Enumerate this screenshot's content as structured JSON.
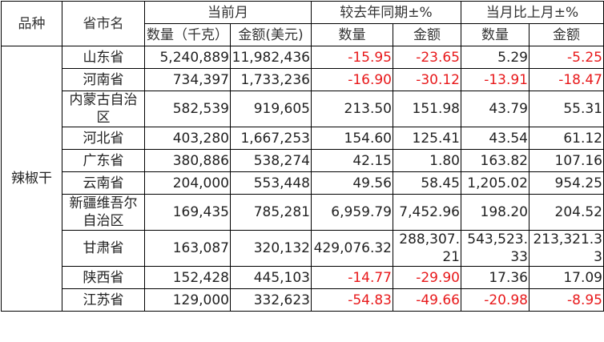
{
  "header": {
    "variety": "品种",
    "province": "省市名",
    "groups": [
      "当前月",
      "较去年同期±%",
      "当月比上月±%"
    ],
    "subheaders": [
      "数量（千克）",
      "金额(美元)",
      "数量",
      "金额",
      "数量",
      "金额"
    ]
  },
  "variety": "辣椒干",
  "rows": [
    {
      "province": "山东省",
      "values": [
        "5,240,889",
        "11,982,436",
        "-15.95",
        "-23.65",
        "5.29",
        "-5.25"
      ]
    },
    {
      "province": "河南省",
      "values": [
        "734,397",
        "1,733,236",
        "-16.90",
        "-30.12",
        "-13.91",
        "-18.47"
      ]
    },
    {
      "province": "内蒙古自治区",
      "values": [
        "582,539",
        "919,605",
        "213.50",
        "151.98",
        "43.79",
        "55.31"
      ]
    },
    {
      "province": "河北省",
      "values": [
        "403,280",
        "1,667,253",
        "154.60",
        "125.41",
        "43.54",
        "61.12"
      ]
    },
    {
      "province": "广东省",
      "values": [
        "380,886",
        "538,274",
        "42.15",
        "1.80",
        "163.82",
        "107.16"
      ]
    },
    {
      "province": "云南省",
      "values": [
        "204,000",
        "553,448",
        "49.56",
        "58.45",
        "1,205.02",
        "954.25"
      ]
    },
    {
      "province": "新疆维吾尔自治区",
      "values": [
        "169,435",
        "785,281",
        "6,959.79",
        "7,452.96",
        "198.20",
        "204.52"
      ]
    },
    {
      "province": "甘肃省",
      "values": [
        "163,087",
        "320,132",
        "429,076.32",
        "288,307.21",
        "543,523.33",
        "213,321.33"
      ]
    },
    {
      "province": "陕西省",
      "values": [
        "152,428",
        "445,103",
        "-14.77",
        "-29.90",
        "17.36",
        "17.09"
      ]
    },
    {
      "province": "江苏省",
      "values": [
        "129,000",
        "332,623",
        "-54.83",
        "-49.66",
        "-20.98",
        "-8.95"
      ]
    }
  ]
}
